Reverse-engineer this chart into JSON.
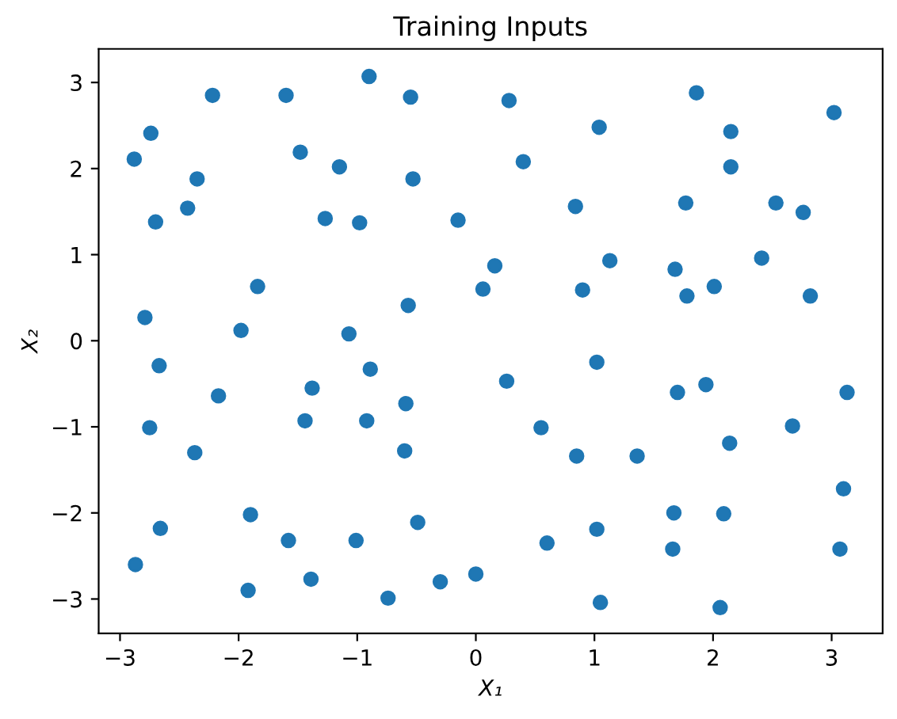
{
  "chart_data": {
    "type": "scatter",
    "title": "Training Inputs",
    "xlabel": "X₁",
    "ylabel": "X₂",
    "series": [
      {
        "color": "#1f77b4",
        "x": [
          -2.88,
          -2.74,
          -2.7,
          -2.22,
          -2.35,
          -2.43,
          -1.6,
          -1.48,
          -1.15,
          -1.27,
          -0.98,
          -0.9,
          -0.55,
          -0.53,
          -0.15,
          0.28,
          0.4,
          0.84,
          1.04,
          1.13,
          1.86,
          2.15,
          2.15,
          1.77,
          2.53,
          2.76,
          3.02,
          -2.79,
          -1.84,
          -1.98,
          -1.07,
          -0.57,
          0.06,
          0.16,
          0.9,
          1.68,
          1.78,
          2.01,
          2.41,
          2.82,
          -2.67,
          -2.17,
          -2.75,
          -1.38,
          -0.89,
          -1.44,
          -0.92,
          -0.59,
          -2.37,
          -0.6,
          0.26,
          0.55,
          1.02,
          0.85,
          1.36,
          1.7,
          1.94,
          2.67,
          3.13,
          2.14,
          3.1,
          -2.87,
          -2.66,
          -1.9,
          -1.58,
          -1.01,
          -0.49,
          -1.92,
          -1.39,
          -0.74,
          -0.3,
          0.0,
          0.6,
          1.02,
          1.67,
          2.09,
          1.66,
          3.07,
          1.05,
          2.06
        ],
        "values": [
          2.11,
          2.41,
          1.38,
          2.85,
          1.88,
          1.54,
          2.85,
          2.19,
          2.02,
          1.42,
          1.37,
          3.07,
          2.83,
          1.88,
          1.4,
          2.79,
          2.08,
          1.56,
          2.48,
          0.93,
          2.88,
          2.43,
          2.02,
          1.6,
          1.6,
          1.49,
          2.65,
          0.27,
          0.63,
          0.12,
          0.08,
          0.41,
          0.6,
          0.87,
          0.59,
          0.83,
          0.52,
          0.63,
          0.96,
          0.52,
          -0.29,
          -0.64,
          -1.01,
          -0.55,
          -0.33,
          -0.93,
          -0.93,
          -0.73,
          -1.3,
          -1.28,
          -0.47,
          -1.01,
          -0.25,
          -1.34,
          -1.34,
          -0.6,
          -0.51,
          -0.99,
          -0.6,
          -1.19,
          -1.72,
          -2.6,
          -2.18,
          -2.02,
          -2.32,
          -2.32,
          -2.11,
          -2.9,
          -2.77,
          -2.99,
          -2.8,
          -2.71,
          -2.35,
          -2.19,
          -2.0,
          -2.01,
          -2.42,
          -2.42,
          -3.04,
          -3.1
        ]
      }
    ],
    "xlim": [
      -3.18,
      3.43
    ],
    "ylim": [
      -3.4,
      3.39
    ],
    "xticks": [
      -3,
      -2,
      -1,
      0,
      1,
      2,
      3
    ],
    "yticks": [
      -3,
      -2,
      -1,
      0,
      1,
      2,
      3
    ],
    "marker": "circle",
    "grid": false
  }
}
